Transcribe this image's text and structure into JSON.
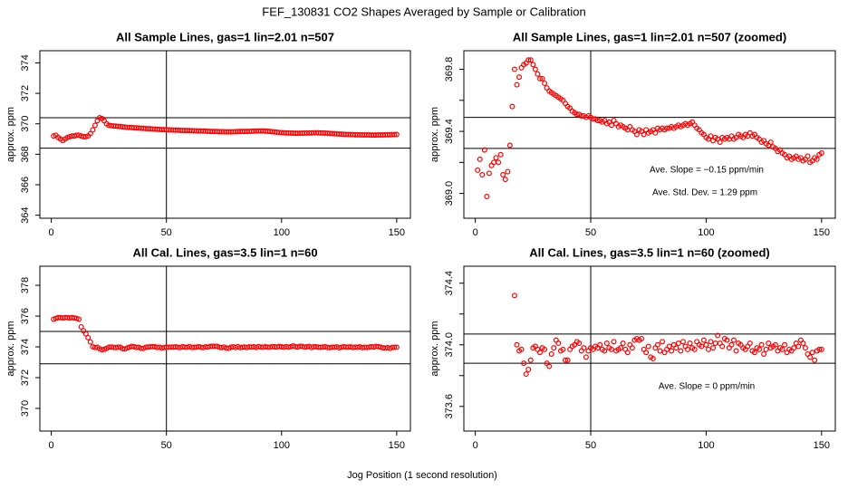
{
  "title": "FEF_130831  CO2 Shapes Averaged by Sample or Calibration",
  "x_label": "Jog Position (1 second resolution)",
  "chart_data": [
    {
      "type": "scatter",
      "title": "All Sample Lines, gas=1 lin=2.01 n=507",
      "y_label": "approx. ppm",
      "color": "#ff0000",
      "xlim": [
        -4.96,
        155.96
      ],
      "xticks": [
        0,
        50,
        100,
        150
      ],
      "ylim": [
        363.8,
        374.8
      ],
      "yticks": [
        364,
        366,
        368,
        370,
        372,
        374
      ],
      "vline": 50,
      "hlines": [
        370.4,
        368.4
      ],
      "annotations": [],
      "x": [
        1,
        2,
        3,
        4,
        5,
        6,
        7,
        8,
        9,
        10,
        11,
        12,
        13,
        14,
        15,
        16,
        17,
        18,
        19,
        20,
        21,
        22,
        23,
        24,
        25,
        26,
        27,
        28,
        29,
        30,
        31,
        32,
        33,
        34,
        35,
        36,
        37,
        38,
        39,
        40,
        41,
        42,
        43,
        44,
        45,
        46,
        47,
        48,
        49,
        50,
        51,
        52,
        53,
        54,
        55,
        56,
        57,
        58,
        59,
        60,
        61,
        62,
        63,
        64,
        65,
        66,
        67,
        68,
        69,
        70,
        71,
        72,
        73,
        74,
        75,
        76,
        77,
        78,
        79,
        80,
        81,
        82,
        83,
        84,
        85,
        86,
        87,
        88,
        89,
        90,
        91,
        92,
        93,
        94,
        95,
        96,
        97,
        98,
        99,
        100,
        101,
        102,
        103,
        104,
        105,
        106,
        107,
        108,
        109,
        110,
        111,
        112,
        113,
        114,
        115,
        116,
        117,
        118,
        119,
        120,
        121,
        122,
        123,
        124,
        125,
        126,
        127,
        128,
        129,
        130,
        131,
        132,
        133,
        134,
        135,
        136,
        137,
        138,
        139,
        140,
        141,
        142,
        143,
        144,
        145,
        146,
        147,
        148,
        149,
        150
      ],
      "values": [
        369.2,
        369.25,
        369.1,
        369.0,
        368.9,
        369.0,
        369.1,
        369.15,
        369.2,
        369.2,
        369.25,
        369.25,
        369.2,
        369.15,
        369.15,
        369.2,
        369.35,
        369.6,
        369.9,
        370.2,
        370.4,
        370.35,
        370.2,
        370.0,
        369.9,
        369.88,
        369.86,
        369.85,
        369.83,
        369.82,
        369.8,
        369.78,
        369.77,
        369.76,
        369.75,
        369.74,
        369.73,
        369.72,
        369.71,
        369.7,
        369.69,
        369.68,
        369.67,
        369.66,
        369.65,
        369.64,
        369.63,
        369.62,
        369.62,
        369.61,
        369.6,
        369.6,
        369.59,
        369.58,
        369.58,
        369.57,
        369.57,
        369.56,
        369.56,
        369.55,
        369.55,
        369.54,
        369.54,
        369.53,
        369.53,
        369.52,
        369.52,
        369.51,
        369.5,
        369.5,
        369.49,
        369.49,
        369.48,
        369.48,
        369.48,
        369.47,
        369.47,
        369.47,
        369.48,
        369.48,
        369.49,
        369.49,
        369.5,
        369.5,
        369.5,
        369.51,
        369.51,
        369.52,
        369.52,
        369.53,
        369.53,
        369.53,
        369.52,
        369.51,
        369.5,
        369.48,
        369.46,
        369.45,
        369.43,
        369.42,
        369.41,
        369.4,
        369.4,
        369.39,
        369.39,
        369.38,
        369.38,
        369.38,
        369.39,
        369.39,
        369.4,
        369.4,
        369.4,
        369.41,
        369.41,
        369.41,
        369.4,
        369.4,
        369.39,
        369.38,
        369.37,
        369.36,
        369.35,
        369.34,
        369.33,
        369.32,
        369.31,
        369.3,
        369.3,
        369.29,
        369.29,
        369.28,
        369.28,
        369.28,
        369.27,
        369.27,
        369.27,
        369.27,
        369.26,
        369.26,
        369.26,
        369.27,
        369.27,
        369.27,
        369.28,
        369.28,
        369.28,
        369.29,
        369.29,
        369.3
      ]
    },
    {
      "type": "scatter",
      "title": "All Sample Lines, gas=1 lin=2.01 n=507 (zoomed)",
      "y_label": "approx. ppm",
      "color": "#ff0000",
      "xlim": [
        -4.96,
        155.96
      ],
      "xticks": [
        0,
        50,
        100,
        150
      ],
      "ylim": [
        368.84,
        369.92
      ],
      "yticks": [
        {
          "value": 369.0,
          "label": "369.0"
        },
        {
          "value": 369.2,
          "label": null
        },
        {
          "value": 369.4,
          "label": "369.4"
        },
        {
          "value": 369.6,
          "label": null
        },
        {
          "value": 369.8,
          "label": "369.8"
        }
      ],
      "vline": 50,
      "hlines": [
        369.49,
        369.29
      ],
      "annotations": [
        "Ave. Slope =  −0.15  ppm/min",
        "Ave. Std. Dev. =  1.29  ppm"
      ],
      "x": [
        1,
        2,
        3,
        4,
        5,
        6,
        7,
        8,
        9,
        10,
        11,
        12,
        13,
        14,
        15,
        16,
        17,
        18,
        19,
        20,
        21,
        22,
        23,
        24,
        25,
        26,
        27,
        28,
        29,
        30,
        31,
        32,
        33,
        34,
        35,
        36,
        37,
        38,
        39,
        40,
        41,
        42,
        43,
        44,
        45,
        46,
        47,
        48,
        49,
        50,
        51,
        52,
        53,
        54,
        55,
        56,
        57,
        58,
        59,
        60,
        61,
        62,
        63,
        64,
        65,
        66,
        67,
        68,
        69,
        70,
        71,
        72,
        73,
        74,
        75,
        76,
        77,
        78,
        79,
        80,
        81,
        82,
        83,
        84,
        85,
        86,
        87,
        88,
        89,
        90,
        91,
        92,
        93,
        94,
        95,
        96,
        97,
        98,
        99,
        100,
        101,
        102,
        103,
        104,
        105,
        106,
        107,
        108,
        109,
        110,
        111,
        112,
        113,
        114,
        115,
        116,
        117,
        118,
        119,
        120,
        121,
        122,
        123,
        124,
        125,
        126,
        127,
        128,
        129,
        130,
        131,
        132,
        133,
        134,
        135,
        136,
        137,
        138,
        139,
        140,
        141,
        142,
        143,
        144,
        145,
        146,
        147,
        148,
        149,
        150
      ],
      "values": [
        369.15,
        369.22,
        369.12,
        369.28,
        368.98,
        369.13,
        369.18,
        369.2,
        369.23,
        369.2,
        369.25,
        369.12,
        369.09,
        369.14,
        369.31,
        369.56,
        369.8,
        369.7,
        369.75,
        369.81,
        369.83,
        369.84,
        369.86,
        369.86,
        369.83,
        369.8,
        369.77,
        369.74,
        369.74,
        369.71,
        369.68,
        369.66,
        369.65,
        369.64,
        369.63,
        369.62,
        369.61,
        369.6,
        369.58,
        369.56,
        369.55,
        369.53,
        369.52,
        369.51,
        369.51,
        369.5,
        369.5,
        369.49,
        369.5,
        369.49,
        369.48,
        369.48,
        369.47,
        369.47,
        369.46,
        369.47,
        369.45,
        369.46,
        369.44,
        369.47,
        369.45,
        369.43,
        369.44,
        369.43,
        369.42,
        369.41,
        369.43,
        369.41,
        369.4,
        369.38,
        369.41,
        369.4,
        369.38,
        369.41,
        369.39,
        369.4,
        369.41,
        369.39,
        369.42,
        369.41,
        369.42,
        369.41,
        369.42,
        369.42,
        369.43,
        369.42,
        369.43,
        369.44,
        369.43,
        369.44,
        369.45,
        369.44,
        369.45,
        369.46,
        369.44,
        369.42,
        369.41,
        369.39,
        369.38,
        369.36,
        369.35,
        369.37,
        369.34,
        369.36,
        369.35,
        369.33,
        369.36,
        369.35,
        369.36,
        369.35,
        369.37,
        369.35,
        369.36,
        369.38,
        369.37,
        369.36,
        369.38,
        369.37,
        369.39,
        369.37,
        369.38,
        369.36,
        369.35,
        369.33,
        369.34,
        369.32,
        369.31,
        369.33,
        369.3,
        369.29,
        369.27,
        369.28,
        369.26,
        369.25,
        369.23,
        369.24,
        369.22,
        369.23,
        369.24,
        369.22,
        369.23,
        369.21,
        369.22,
        369.24,
        369.2,
        369.21,
        369.23,
        369.22,
        369.25,
        369.26
      ]
    },
    {
      "type": "scatter",
      "title": "All Cal. Lines, gas=3.5 lin=1 n=60",
      "y_label": "approx. ppm",
      "color": "#ff0000",
      "xlim": [
        -4.96,
        155.96
      ],
      "xticks": [
        0,
        50,
        100,
        150
      ],
      "ylim": [
        368.53,
        379.24
      ],
      "yticks": [
        370,
        372,
        374,
        376,
        378
      ],
      "vline": 50,
      "hlines": [
        375.0,
        372.9
      ],
      "annotations": [],
      "x": [
        1,
        2,
        3,
        4,
        5,
        6,
        7,
        8,
        9,
        10,
        11,
        12,
        13,
        14,
        15,
        16,
        17,
        18,
        19,
        20,
        21,
        22,
        23,
        24,
        25,
        26,
        27,
        28,
        29,
        30,
        31,
        32,
        33,
        34,
        35,
        36,
        37,
        38,
        39,
        40,
        41,
        42,
        43,
        44,
        45,
        46,
        47,
        48,
        49,
        50,
        51,
        52,
        53,
        54,
        55,
        56,
        57,
        58,
        59,
        60,
        61,
        62,
        63,
        64,
        65,
        66,
        67,
        68,
        69,
        70,
        71,
        72,
        73,
        74,
        75,
        76,
        77,
        78,
        79,
        80,
        81,
        82,
        83,
        84,
        85,
        86,
        87,
        88,
        89,
        90,
        91,
        92,
        93,
        94,
        95,
        96,
        97,
        98,
        99,
        100,
        101,
        102,
        103,
        104,
        105,
        106,
        107,
        108,
        109,
        110,
        111,
        112,
        113,
        114,
        115,
        116,
        117,
        118,
        119,
        120,
        121,
        122,
        123,
        124,
        125,
        126,
        127,
        128,
        129,
        130,
        131,
        132,
        133,
        134,
        135,
        136,
        137,
        138,
        139,
        140,
        141,
        142,
        143,
        144,
        145,
        146,
        147,
        148,
        149,
        150
      ],
      "values": [
        375.8,
        375.85,
        375.9,
        375.9,
        375.88,
        375.9,
        375.9,
        375.88,
        375.9,
        375.88,
        375.85,
        375.8,
        375.3,
        375.05,
        374.85,
        374.6,
        374.32,
        374.0,
        373.96,
        373.97,
        373.88,
        373.81,
        373.84,
        373.9,
        373.98,
        373.99,
        373.97,
        373.95,
        373.98,
        373.97,
        373.88,
        373.86,
        373.94,
        373.98,
        374.03,
        374.01,
        373.96,
        373.97,
        373.9,
        373.9,
        373.97,
        373.99,
        374.0,
        374.02,
        374.01,
        373.96,
        373.98,
        373.92,
        373.96,
        373.98,
        373.97,
        373.99,
        373.98,
        374.0,
        373.97,
        373.96,
        374.01,
        373.98,
        373.97,
        374.02,
        373.96,
        373.97,
        373.98,
        374.01,
        373.97,
        373.95,
        374.0,
        373.98,
        374.03,
        374.04,
        374.03,
        374.04,
        373.97,
        373.95,
        373.99,
        373.92,
        373.91,
        373.98,
        374.0,
        373.96,
        374.02,
        373.95,
        373.97,
        373.99,
        373.96,
        374.0,
        373.98,
        374.01,
        373.96,
        374.02,
        373.99,
        373.97,
        374.01,
        373.98,
        373.97,
        374.02,
        374.0,
        373.99,
        374.03,
        374.0,
        373.97,
        374.02,
        373.98,
        374.01,
        374.06,
        374.01,
        373.99,
        374.04,
        374.03,
        373.98,
        374.0,
        374.03,
        373.96,
        374.01,
        374.0,
        373.98,
        373.97,
        373.99,
        374.01,
        373.96,
        373.95,
        373.98,
        373.97,
        374.0,
        373.94,
        373.97,
        374.01,
        373.98,
        373.99,
        374.0,
        373.96,
        373.98,
        373.97,
        374.0,
        373.95,
        373.97,
        373.96,
        373.98,
        374.01,
        373.99,
        374.03,
        374.01,
        373.98,
        373.94,
        373.92,
        373.95,
        373.9,
        373.96,
        373.97,
        373.97
      ]
    },
    {
      "type": "scatter",
      "title": "All Cal. Lines, gas=3.5 lin=1 n=60 (zoomed)",
      "y_label": "approx. ppm",
      "color": "#ff0000",
      "xlim": [
        -4.96,
        155.96
      ],
      "xticks": [
        0,
        50,
        100,
        150
      ],
      "ylim": [
        373.44,
        374.51
      ],
      "yticks": [
        {
          "value": 373.6,
          "label": "373.6"
        },
        {
          "value": 373.8,
          "label": null
        },
        {
          "value": 374.0,
          "label": "374.0"
        },
        {
          "value": 374.2,
          "label": null
        },
        {
          "value": 374.4,
          "label": "374.4"
        }
      ],
      "vline": 50,
      "hlines": [
        374.07,
        373.88
      ],
      "annotations": [
        "Ave. Slope =  0  ppm/min"
      ],
      "x": [
        17,
        18,
        19,
        20,
        21,
        22,
        23,
        24,
        25,
        26,
        27,
        28,
        29,
        30,
        31,
        32,
        33,
        34,
        35,
        36,
        37,
        38,
        39,
        40,
        41,
        42,
        43,
        44,
        45,
        46,
        47,
        48,
        49,
        50,
        51,
        52,
        53,
        54,
        55,
        56,
        57,
        58,
        59,
        60,
        61,
        62,
        63,
        64,
        65,
        66,
        67,
        68,
        69,
        70,
        71,
        72,
        73,
        74,
        75,
        76,
        77,
        78,
        79,
        80,
        81,
        82,
        83,
        84,
        85,
        86,
        87,
        88,
        89,
        90,
        91,
        92,
        93,
        94,
        95,
        96,
        97,
        98,
        99,
        100,
        101,
        102,
        103,
        104,
        105,
        106,
        107,
        108,
        109,
        110,
        111,
        112,
        113,
        114,
        115,
        116,
        117,
        118,
        119,
        120,
        121,
        122,
        123,
        124,
        125,
        126,
        127,
        128,
        129,
        130,
        131,
        132,
        133,
        134,
        135,
        136,
        137,
        138,
        139,
        140,
        141,
        142,
        143,
        144,
        145,
        146,
        147,
        148,
        149,
        150
      ],
      "values": [
        374.32,
        374.0,
        373.96,
        373.97,
        373.88,
        373.81,
        373.84,
        373.9,
        373.98,
        373.99,
        373.97,
        373.95,
        373.98,
        373.97,
        373.88,
        373.86,
        373.94,
        373.98,
        374.03,
        374.01,
        373.96,
        373.97,
        373.9,
        373.9,
        373.97,
        373.99,
        374.0,
        374.02,
        374.01,
        373.96,
        373.98,
        373.92,
        373.96,
        373.98,
        373.97,
        373.99,
        373.98,
        374.0,
        373.97,
        373.96,
        374.01,
        373.98,
        373.97,
        374.02,
        373.96,
        373.97,
        373.98,
        374.01,
        373.97,
        373.95,
        374.0,
        373.98,
        374.03,
        374.04,
        374.03,
        374.04,
        373.97,
        373.95,
        373.99,
        373.92,
        373.91,
        373.98,
        374.0,
        373.96,
        374.02,
        373.95,
        373.97,
        373.99,
        373.96,
        374.0,
        373.98,
        374.01,
        373.96,
        374.02,
        373.99,
        373.97,
        374.01,
        373.98,
        373.97,
        374.02,
        374.0,
        373.99,
        374.03,
        374.0,
        373.97,
        374.02,
        373.98,
        374.01,
        374.06,
        374.01,
        373.99,
        374.04,
        374.03,
        373.98,
        374.0,
        374.03,
        373.96,
        374.01,
        374.0,
        373.98,
        373.97,
        373.99,
        374.01,
        373.96,
        373.95,
        373.98,
        373.97,
        374.0,
        373.94,
        373.97,
        374.01,
        373.98,
        373.99,
        374.0,
        373.96,
        373.98,
        373.97,
        374.0,
        373.95,
        373.97,
        373.96,
        373.98,
        374.01,
        373.99,
        374.03,
        374.01,
        373.98,
        373.94,
        373.92,
        373.95,
        373.9,
        373.96,
        373.97,
        373.97
      ]
    }
  ]
}
